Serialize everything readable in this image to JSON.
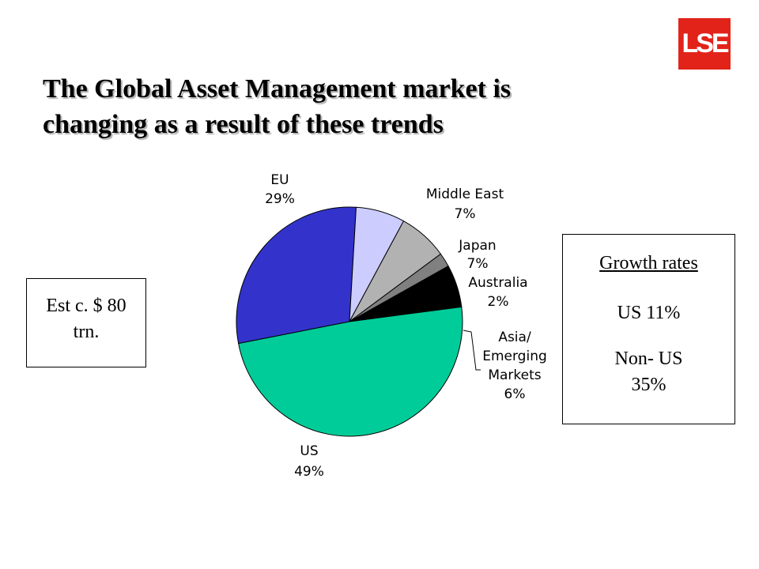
{
  "logo": {
    "text": "LSE",
    "color": "#e2231a"
  },
  "title": {
    "line1": "The Global Asset Management market is",
    "line2": "changing as a result of these trends"
  },
  "est_box": {
    "line1": "Est c. $ 80",
    "line2": "trn."
  },
  "growth_box": {
    "heading": "Growth rates",
    "us": "US 11%",
    "non_us_line1": "Non- US",
    "non_us_line2": "35%"
  },
  "chart_data": {
    "type": "pie",
    "title": "",
    "slices": [
      {
        "label": "EU",
        "label_lines": [
          "EU"
        ],
        "pct_label": "29%",
        "value": 29,
        "color": "#3333cc"
      },
      {
        "label": "Middle East",
        "label_lines": [
          "Middle East"
        ],
        "pct_label": "7%",
        "value": 7,
        "color": "#ccccff"
      },
      {
        "label": "Japan",
        "label_lines": [
          "Japan"
        ],
        "pct_label": "7%",
        "value": 7,
        "color": "#b2b2b2"
      },
      {
        "label": "Australia",
        "label_lines": [
          "Australia"
        ],
        "pct_label": "2%",
        "value": 2,
        "color": "#808080"
      },
      {
        "label": "Asia/ Emerging Markets",
        "label_lines": [
          "Asia/",
          "Emerging",
          "Markets"
        ],
        "pct_label": "6%",
        "value": 6,
        "color": "#000000"
      },
      {
        "label": "US",
        "label_lines": [
          "US"
        ],
        "pct_label": "49%",
        "value": 49,
        "color": "#00cc99"
      }
    ]
  }
}
